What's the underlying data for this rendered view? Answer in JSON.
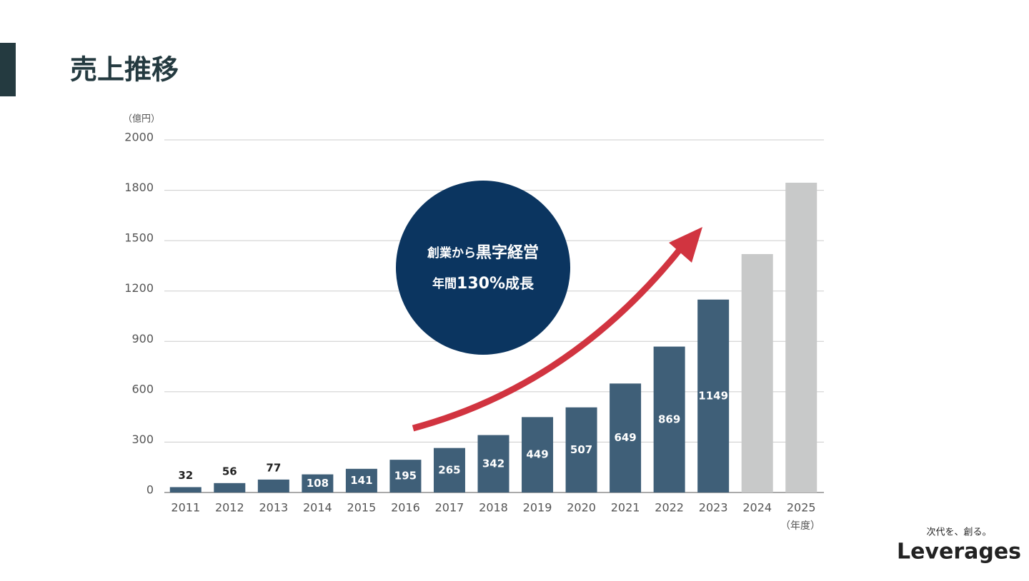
{
  "header": {
    "title": "売上推移"
  },
  "chart_data": {
    "type": "bar",
    "y_unit": "（億円）",
    "x_unit": "（年度）",
    "categories": [
      "2011",
      "2012",
      "2013",
      "2014",
      "2015",
      "2016",
      "2017",
      "2018",
      "2019",
      "2020",
      "2021",
      "2022",
      "2023",
      "2024",
      "2025"
    ],
    "values": [
      32,
      56,
      77,
      108,
      141,
      195,
      265,
      342,
      449,
      507,
      649,
      869,
      1149,
      1420,
      1830
    ],
    "value_labels": [
      "32",
      "56",
      "77",
      "108",
      "141",
      "195",
      "265",
      "342",
      "449",
      "507",
      "649",
      "869",
      "1149",
      null,
      null
    ],
    "colors": [
      "#3f5f78",
      "#3f5f78",
      "#3f5f78",
      "#3f5f78",
      "#3f5f78",
      "#3f5f78",
      "#3f5f78",
      "#3f5f78",
      "#3f5f78",
      "#3f5f78",
      "#3f5f78",
      "#3f5f78",
      "#3f5f78",
      "#c8c9c9",
      "#c8c9c9"
    ],
    "ylim": [
      0,
      2000
    ],
    "yticks": [
      0,
      300,
      600,
      900,
      1200,
      1500,
      1800,
      2000
    ],
    "grid": true,
    "annotation": {
      "line1_a": "創業から",
      "line1_b": "黒字経営",
      "line2_a": "年間",
      "line2_b": "130%",
      "line2_c": "成長"
    }
  },
  "footer": {
    "tagline": "次代を、創る。",
    "logo": "Leverages"
  }
}
